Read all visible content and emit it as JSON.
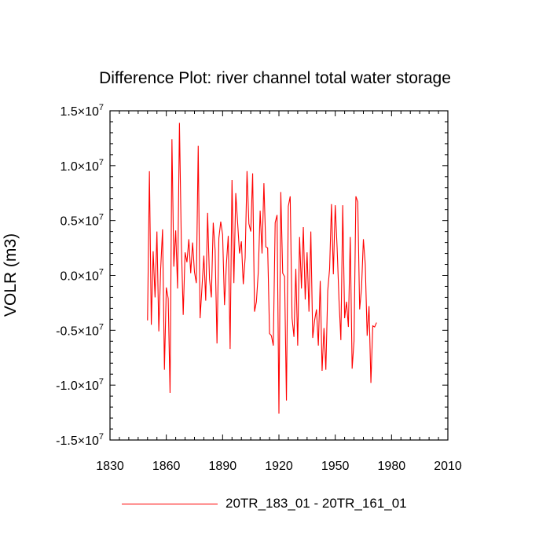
{
  "chart_data": {
    "type": "line",
    "title": "Difference Plot: river channel total water storage",
    "ylabel": "VOLR  (m3)",
    "xlabel": "",
    "xlim": [
      1830,
      2010
    ],
    "ylim": [
      -15000000.0,
      15000000.0
    ],
    "xticks": [
      1830,
      1860,
      1890,
      1920,
      1950,
      1980,
      2010
    ],
    "xtick_labels": [
      "1830",
      "1860",
      "1890",
      "1920",
      "1950",
      "1980",
      "2010"
    ],
    "yticks": [
      -15000000.0,
      -10000000.0,
      -5000000.0,
      0.0,
      5000000.0,
      10000000.0,
      15000000.0
    ],
    "ytick_mantissas": [
      "-1.5",
      "-1.0",
      "-0.5",
      "0.0",
      "0.5",
      "1.0",
      "1.5"
    ],
    "ytick_suffix": "×10",
    "ytick_exponent": "7",
    "color": "#ff0000",
    "series": [
      {
        "name": "20TR_183_01 - 20TR_161_01",
        "x_start": 1850,
        "x_step": 1,
        "values_e7": [
          -0.41,
          0.95,
          -0.45,
          0.22,
          -0.2,
          0.4,
          -0.51,
          0.06,
          0.42,
          -0.86,
          -0.11,
          -0.21,
          -1.07,
          1.24,
          0.08,
          0.41,
          -0.12,
          1.39,
          0.3,
          -0.36,
          0.21,
          0.12,
          0.33,
          0.02,
          0.3,
          0.03,
          -0.07,
          1.18,
          -0.39,
          -0.11,
          0.18,
          -0.23,
          0.57,
          -0.03,
          -0.2,
          0.48,
          0.23,
          -0.62,
          0.34,
          0.49,
          0.37,
          -0.27,
          0.1,
          0.36,
          -0.67,
          0.87,
          -0.07,
          0.75,
          0.48,
          0.2,
          0.31,
          -0.08,
          0.16,
          0.95,
          0.47,
          0.4,
          0.93,
          -0.33,
          -0.24,
          0.03,
          0.59,
          0.2,
          0.84,
          0.26,
          0.25,
          -0.53,
          -0.55,
          -0.64,
          0.48,
          0.55,
          -1.26,
          0.76,
          0.02,
          -0.01,
          -1.14,
          0.63,
          0.72,
          -0.39,
          -0.56,
          0.06,
          -0.64,
          0.35,
          -0.12,
          0.44,
          -0.22,
          0.21,
          -0.33,
          0.4,
          -0.57,
          -0.41,
          -0.31,
          -0.64,
          -0.05,
          -0.87,
          -0.48,
          -0.86,
          -0.14,
          0.06,
          0.65,
          0.01,
          0.64,
          0.25,
          -0.22,
          -0.59,
          0.64,
          -0.39,
          -0.24,
          -0.47,
          0.35,
          -0.85,
          -0.6,
          0.72,
          0.67,
          -0.31,
          -0.12,
          0.33,
          0.1,
          -0.55,
          -0.28,
          -0.98,
          -0.46,
          -0.47,
          -0.43
        ]
      }
    ]
  }
}
